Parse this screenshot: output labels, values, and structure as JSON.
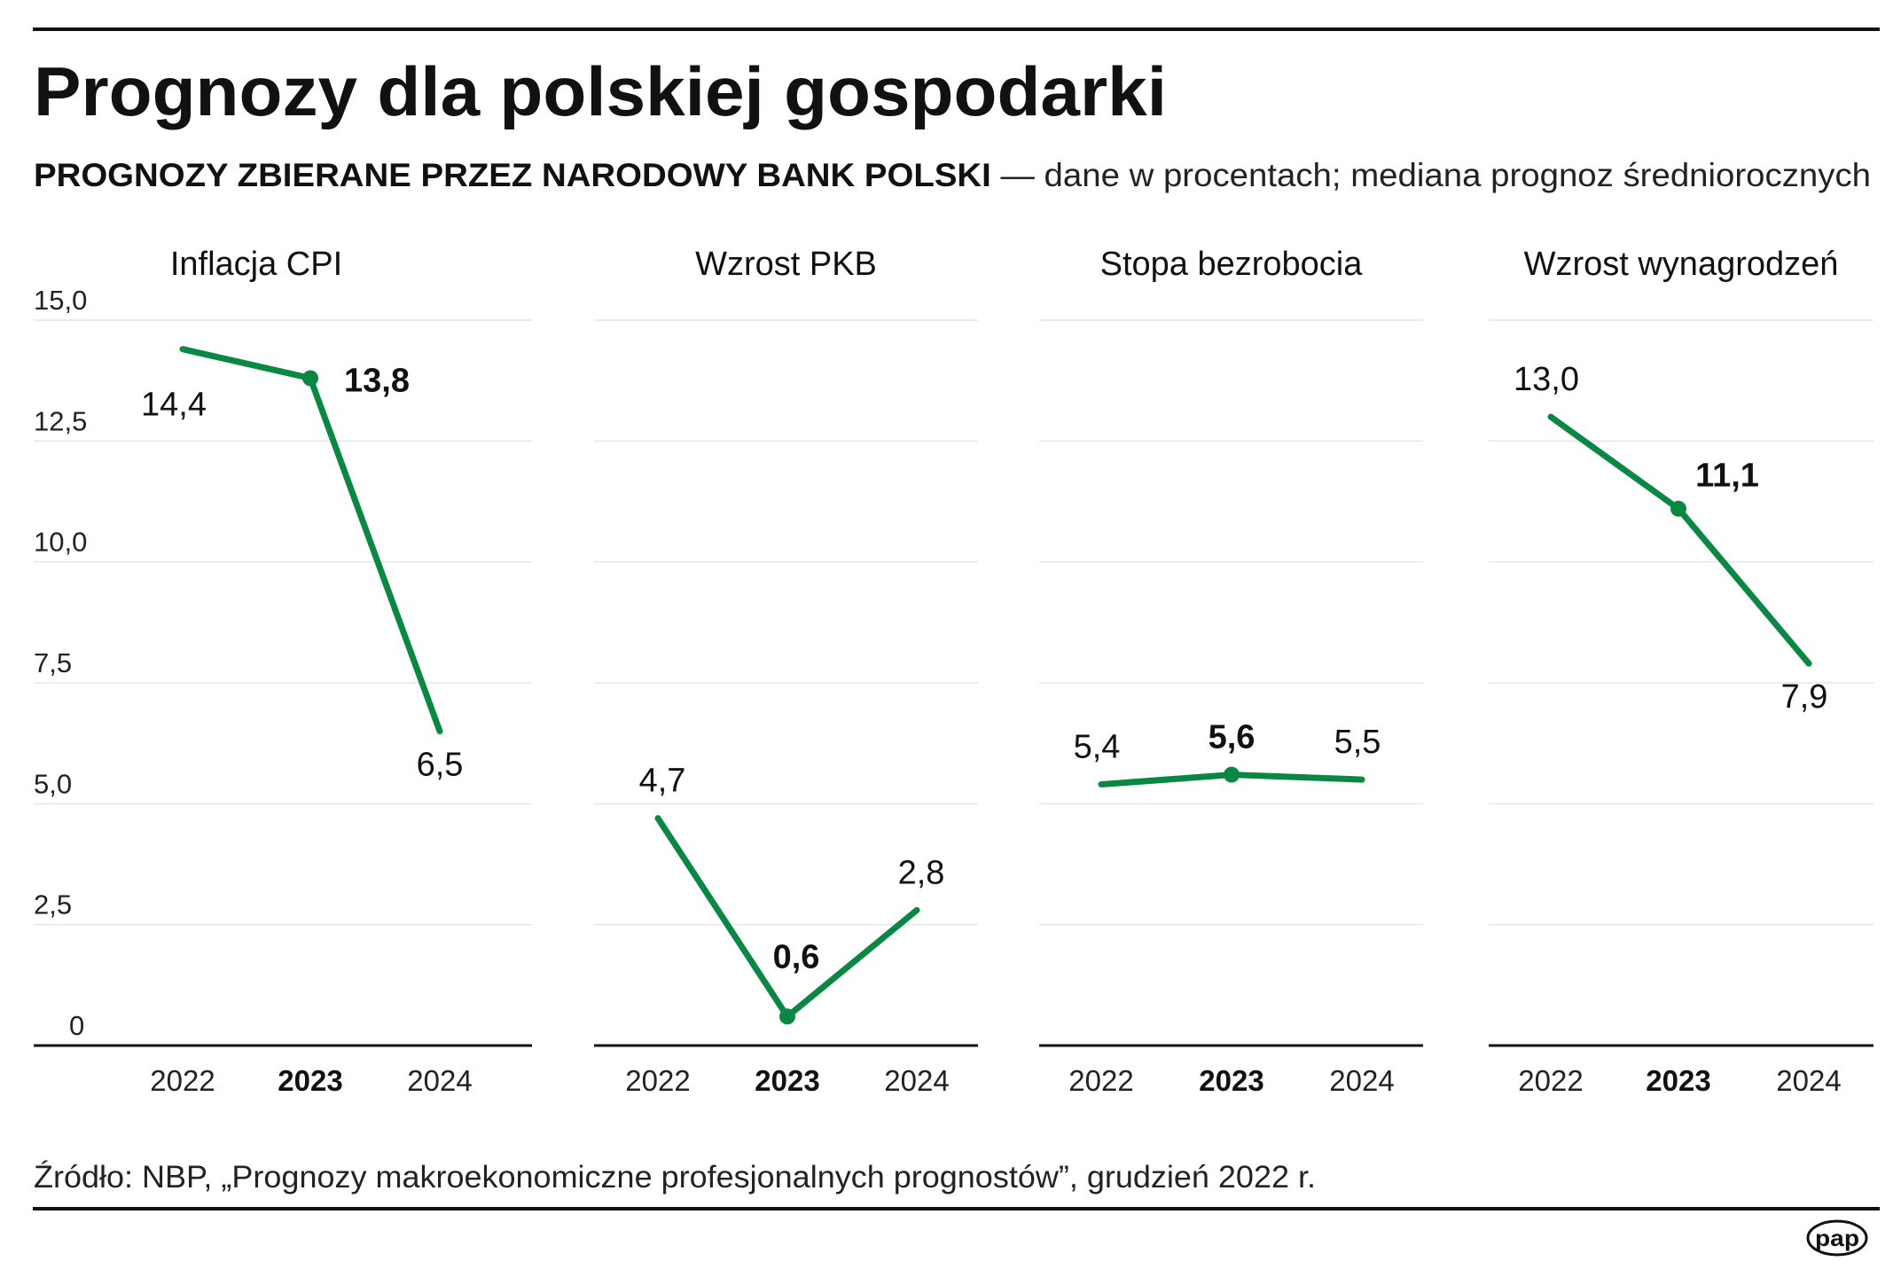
{
  "title": "Prognozy dla polskiej gospodarki",
  "subtitle_bold": "PROGNOZY ZBIERANE PRZEZ NARODOWY BANK POLSKI",
  "subtitle_rest": " — dane w procentach; mediana prognoz średniorocznych",
  "source": "Źródło: NBP, „Prognozy makroekonomiczne profesjonalnych prognostów”, grudzień 2022 r.",
  "logo": "pap",
  "colors": {
    "line": "#0a8843"
  },
  "chart_data": [
    {
      "type": "line",
      "title": "Inflacja CPI",
      "categories": [
        "2022",
        "2023",
        "2024"
      ],
      "values": [
        14.4,
        13.8,
        6.5
      ],
      "labels": [
        "14,4",
        "13,8",
        "6,5"
      ],
      "highlight": "2023",
      "ylim": [
        0,
        15
      ],
      "yticks": [
        "0",
        "2,5",
        "5,0",
        "7,5",
        "10,0",
        "12,5",
        "15,0"
      ],
      "grid": true
    },
    {
      "type": "line",
      "title": "Wzrost PKB",
      "categories": [
        "2022",
        "2023",
        "2024"
      ],
      "values": [
        4.7,
        0.6,
        2.8
      ],
      "labels": [
        "4,7",
        "0,6",
        "2,8"
      ],
      "highlight": "2023",
      "ylim": [
        0,
        15
      ],
      "grid": true
    },
    {
      "type": "line",
      "title": "Stopa bezrobocia",
      "categories": [
        "2022",
        "2023",
        "2024"
      ],
      "values": [
        5.4,
        5.6,
        5.5
      ],
      "labels": [
        "5,4",
        "5,6",
        "5,5"
      ],
      "highlight": "2023",
      "ylim": [
        0,
        15
      ],
      "grid": true
    },
    {
      "type": "line",
      "title": "Wzrost wynagrodzeń",
      "categories": [
        "2022",
        "2023",
        "2024"
      ],
      "values": [
        13.0,
        11.1,
        7.9
      ],
      "labels": [
        "13,0",
        "11,1",
        "7,9"
      ],
      "highlight": "2023",
      "ylim": [
        0,
        15
      ],
      "grid": true
    }
  ]
}
